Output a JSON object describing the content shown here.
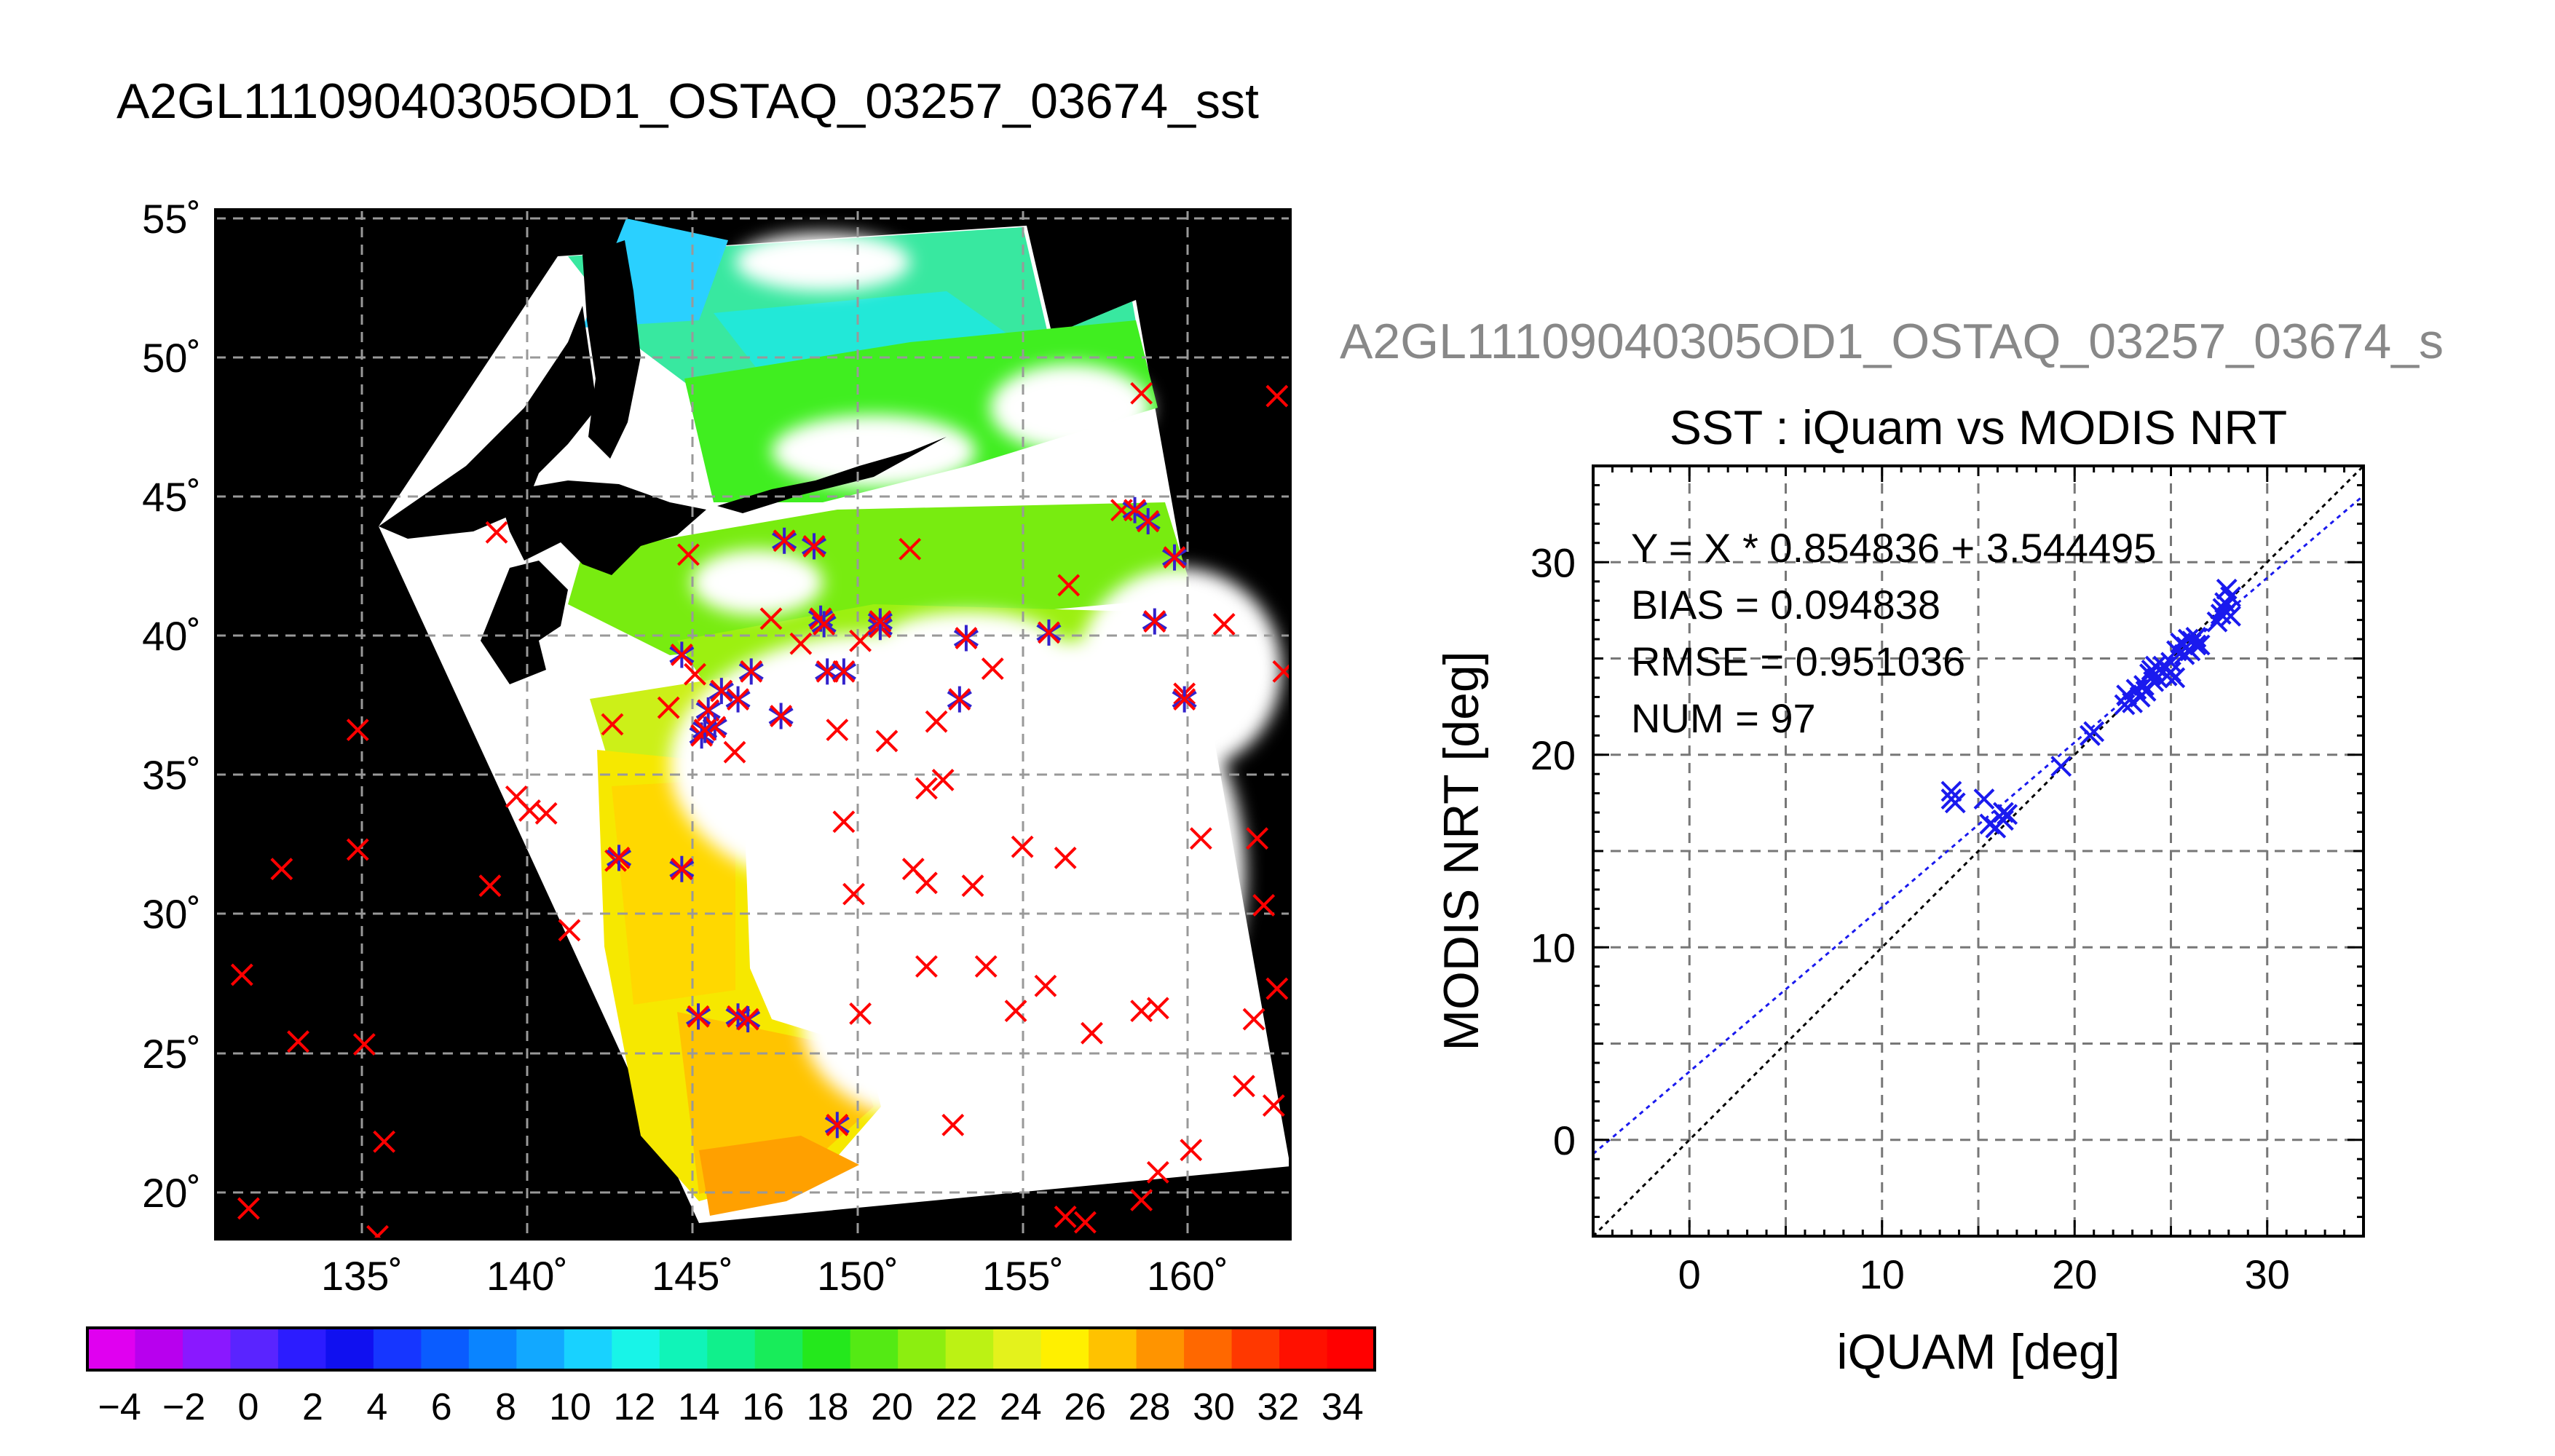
{
  "title": "A2GL11109040305OD1_OSTAQ_03257_03674_sst",
  "scatter_header": "A2GL11109040305OD1_OSTAQ_03257_03674_s",
  "colors": {
    "observation": "#ff0000",
    "matched": "#3322cc",
    "fit_line": "#1a1aee",
    "identity_line": "#000000",
    "land": "#000000",
    "cloud": "#ffffff"
  },
  "chart_data": [
    {
      "type": "heatmap",
      "title": "A2GL11109040305OD1_OSTAQ_03257_03674_sst",
      "x_tick_labels": [
        "135˚",
        "140˚",
        "145˚",
        "150˚",
        "155˚",
        "160˚"
      ],
      "y_tick_labels": [
        "55˚",
        "50˚",
        "45˚",
        "40˚",
        "35˚",
        "30˚",
        "25˚",
        "20˚"
      ],
      "xlim": [
        130.5,
        163.0
      ],
      "ylim": [
        18.5,
        55.5
      ],
      "grid": true,
      "colorbar": {
        "range": [
          -5,
          35
        ],
        "tick_labels": [
          "−4",
          "−2",
          "0",
          "2",
          "4",
          "6",
          "8",
          "10",
          "12",
          "14",
          "16",
          "18",
          "20",
          "22",
          "24",
          "26",
          "28",
          "30",
          "32",
          "34"
        ],
        "colors": [
          "#e000f0",
          "#b800ee",
          "#8a18ff",
          "#5a24ff",
          "#2c1cff",
          "#1010f0",
          "#1636ff",
          "#0a5cff",
          "#0a84ff",
          "#12a8ff",
          "#18d2ff",
          "#18f4e8",
          "#10f4b8",
          "#10f08c",
          "#18ec5a",
          "#24e81c",
          "#54ea14",
          "#8cee10",
          "#bcf214",
          "#e4f21c",
          "#fff000",
          "#ffc200",
          "#ff9400",
          "#ff6800",
          "#ff3800",
          "#ff1000",
          "#ff0000"
        ]
      },
      "observations": [
        [
          158.5,
          48.9
        ],
        [
          162.6,
          48.8
        ],
        [
          139.0,
          43.9
        ],
        [
          151.5,
          43.3
        ],
        [
          156.3,
          42.0
        ],
        [
          161.0,
          40.6
        ],
        [
          162.8,
          38.9
        ],
        [
          154.0,
          39.0
        ],
        [
          152.3,
          37.1
        ],
        [
          142.5,
          37.0
        ],
        [
          146.2,
          36.0
        ],
        [
          149.3,
          36.8
        ],
        [
          150.8,
          36.4
        ],
        [
          159.8,
          38.1
        ],
        [
          134.8,
          36.8
        ],
        [
          139.6,
          34.4
        ],
        [
          140.0,
          33.9
        ],
        [
          140.5,
          33.8
        ],
        [
          149.5,
          33.5
        ],
        [
          152.0,
          34.7
        ],
        [
          152.5,
          35.0
        ],
        [
          154.9,
          32.6
        ],
        [
          156.2,
          32.2
        ],
        [
          160.3,
          32.9
        ],
        [
          162.0,
          32.9
        ],
        [
          132.5,
          31.8
        ],
        [
          134.8,
          32.5
        ],
        [
          138.8,
          31.2
        ],
        [
          142.6,
          32.1
        ],
        [
          149.8,
          30.9
        ],
        [
          151.6,
          31.8
        ],
        [
          152.0,
          31.3
        ],
        [
          153.4,
          31.2
        ],
        [
          162.2,
          30.5
        ],
        [
          141.2,
          29.6
        ],
        [
          131.3,
          28.0
        ],
        [
          152.0,
          28.3
        ],
        [
          153.8,
          28.3
        ],
        [
          155.6,
          27.6
        ],
        [
          158.5,
          26.7
        ],
        [
          159.0,
          26.8
        ],
        [
          162.6,
          27.5
        ],
        [
          154.7,
          26.7
        ],
        [
          150.0,
          26.6
        ],
        [
          133.0,
          25.6
        ],
        [
          135.0,
          25.5
        ],
        [
          157.0,
          25.9
        ],
        [
          161.9,
          26.4
        ],
        [
          161.6,
          24.0
        ],
        [
          162.5,
          23.3
        ],
        [
          152.8,
          22.6
        ],
        [
          135.6,
          22.0
        ],
        [
          160.0,
          21.7
        ],
        [
          159.0,
          20.9
        ],
        [
          131.5,
          19.6
        ],
        [
          158.5,
          19.9
        ],
        [
          156.2,
          19.3
        ],
        [
          156.8,
          19.1
        ],
        [
          135.4,
          18.6
        ],
        [
          144.8,
          43.1
        ],
        [
          157.9,
          44.7
        ],
        [
          147.3,
          40.8
        ],
        [
          145.0,
          38.8
        ],
        [
          148.2,
          39.9
        ],
        [
          150.0,
          40.0
        ],
        [
          144.2,
          37.6
        ]
      ],
      "matched": [
        [
          147.7,
          43.6
        ],
        [
          148.6,
          43.4
        ],
        [
          158.3,
          44.7
        ],
        [
          158.7,
          44.3
        ],
        [
          159.5,
          43.0
        ],
        [
          144.6,
          39.5
        ],
        [
          148.8,
          40.8
        ],
        [
          148.9,
          40.6
        ],
        [
          150.6,
          40.5
        ],
        [
          150.6,
          40.7
        ],
        [
          153.2,
          40.1
        ],
        [
          155.7,
          40.3
        ],
        [
          158.9,
          40.7
        ],
        [
          145.8,
          38.2
        ],
        [
          146.3,
          37.9
        ],
        [
          146.7,
          38.9
        ],
        [
          149.0,
          38.9
        ],
        [
          149.5,
          38.9
        ],
        [
          153.0,
          37.9
        ],
        [
          159.8,
          37.9
        ],
        [
          145.4,
          37.5
        ],
        [
          145.2,
          36.6
        ],
        [
          145.6,
          36.9
        ],
        [
          145.3,
          36.8
        ],
        [
          147.6,
          37.3
        ],
        [
          142.7,
          32.2
        ],
        [
          144.6,
          31.8
        ],
        [
          145.1,
          26.5
        ],
        [
          146.3,
          26.5
        ],
        [
          146.6,
          26.4
        ],
        [
          149.3,
          22.6
        ]
      ]
    },
    {
      "type": "scatter",
      "title": "SST : iQuam vs MODIS NRT",
      "xlabel": "iQUAM [deg]",
      "ylabel": "MODIS NRT [deg]",
      "xlim": [
        -5,
        35
      ],
      "ylim": [
        -5,
        35
      ],
      "x_ticks": [
        0,
        10,
        20,
        30
      ],
      "y_ticks": [
        0,
        10,
        20,
        30
      ],
      "x_tick_labels": [
        "0",
        "10",
        "20",
        "30"
      ],
      "y_tick_labels": [
        "0",
        "10",
        "20",
        "30"
      ],
      "grid": true,
      "annotations": [
        "Y = X * 0.854836 + 3.544495",
        "BIAS = 0.094838",
        "RMSE = 0.951036",
        "NUM = 97"
      ],
      "fit": {
        "slope": 0.854836,
        "intercept": 3.544495
      },
      "identity_line": true,
      "points": [
        [
          13.6,
          18.1
        ],
        [
          13.6,
          17.7
        ],
        [
          13.8,
          17.5
        ],
        [
          15.3,
          17.7
        ],
        [
          15.6,
          16.4
        ],
        [
          15.9,
          16.2
        ],
        [
          16.3,
          17.0
        ],
        [
          16.5,
          16.9
        ],
        [
          16.3,
          16.6
        ],
        [
          19.3,
          19.4
        ],
        [
          20.8,
          21.0
        ],
        [
          21.0,
          21.2
        ],
        [
          22.6,
          22.6
        ],
        [
          22.7,
          23.1
        ],
        [
          23.0,
          22.7
        ],
        [
          23.2,
          23.4
        ],
        [
          23.4,
          23.0
        ],
        [
          23.6,
          23.6
        ],
        [
          23.9,
          24.2
        ],
        [
          24.1,
          23.8
        ],
        [
          24.3,
          24.0
        ],
        [
          24.0,
          24.4
        ],
        [
          24.6,
          24.6
        ],
        [
          24.8,
          24.1
        ],
        [
          25.0,
          24.3
        ],
        [
          25.2,
          24.0
        ],
        [
          25.0,
          24.8
        ],
        [
          25.3,
          25.4
        ],
        [
          25.5,
          25.8
        ],
        [
          25.8,
          25.6
        ],
        [
          25.9,
          26.0
        ],
        [
          26.0,
          25.4
        ],
        [
          26.1,
          25.9
        ],
        [
          26.3,
          25.7
        ],
        [
          26.5,
          25.7
        ],
        [
          27.4,
          26.9
        ],
        [
          27.6,
          27.3
        ],
        [
          27.7,
          27.6
        ],
        [
          27.8,
          27.9
        ],
        [
          27.9,
          27.4
        ],
        [
          28.1,
          28.2
        ],
        [
          27.9,
          28.6
        ],
        [
          28.1,
          27.2
        ],
        [
          26.3,
          26.1
        ],
        [
          25.7,
          25.2
        ],
        [
          24.2,
          24.6
        ],
        [
          23.7,
          23.3
        ]
      ]
    }
  ]
}
